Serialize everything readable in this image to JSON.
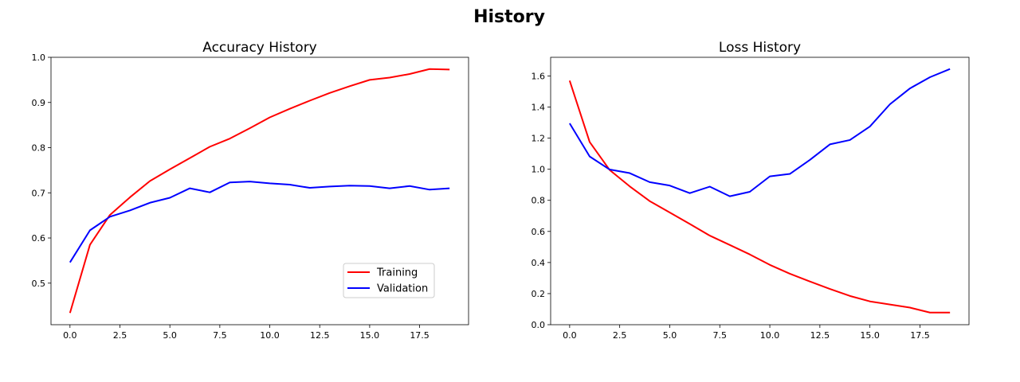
{
  "figure": {
    "title": "History"
  },
  "chart_data": [
    {
      "type": "line",
      "title": "Accuracy History",
      "xlabel": "",
      "ylabel": "",
      "x": [
        0,
        1,
        2,
        3,
        4,
        5,
        6,
        7,
        8,
        9,
        10,
        11,
        12,
        13,
        14,
        15,
        16,
        17,
        18,
        19
      ],
      "xlim": [
        -0.95,
        19.95
      ],
      "ylim": [
        0.408,
        1.0
      ],
      "xticks": [
        0.0,
        2.5,
        5.0,
        7.5,
        10.0,
        12.5,
        15.0,
        17.5
      ],
      "xtick_labels": [
        "0.0",
        "2.5",
        "5.0",
        "7.5",
        "10.0",
        "12.5",
        "15.0",
        "17.5"
      ],
      "yticks": [
        0.5,
        0.6,
        0.7,
        0.8,
        0.9,
        1.0
      ],
      "ytick_labels": [
        "0.5",
        "0.6",
        "0.7",
        "0.8",
        "0.9",
        "1.0"
      ],
      "grid": false,
      "legend": "lower-right",
      "series": [
        {
          "name": "Training",
          "color": "#ff0000",
          "values": [
            0.434,
            0.585,
            0.651,
            0.69,
            0.726,
            0.752,
            0.777,
            0.802,
            0.82,
            0.843,
            0.867,
            0.886,
            0.904,
            0.921,
            0.936,
            0.95,
            0.955,
            0.963,
            0.974,
            0.973
          ]
        },
        {
          "name": "Validation",
          "color": "#0000ff",
          "values": [
            0.546,
            0.617,
            0.647,
            0.661,
            0.678,
            0.689,
            0.71,
            0.701,
            0.723,
            0.725,
            0.721,
            0.718,
            0.711,
            0.714,
            0.716,
            0.715,
            0.71,
            0.715,
            0.707,
            0.71
          ]
        }
      ]
    },
    {
      "type": "line",
      "title": "Loss History",
      "xlabel": "",
      "ylabel": "",
      "x": [
        0,
        1,
        2,
        3,
        4,
        5,
        6,
        7,
        8,
        9,
        10,
        11,
        12,
        13,
        14,
        15,
        16,
        17,
        18,
        19
      ],
      "xlim": [
        -0.95,
        19.95
      ],
      "ylim": [
        0.0,
        1.72
      ],
      "xticks": [
        0.0,
        2.5,
        5.0,
        7.5,
        10.0,
        12.5,
        15.0,
        17.5
      ],
      "xtick_labels": [
        "0.0",
        "2.5",
        "5.0",
        "7.5",
        "10.0",
        "12.5",
        "15.0",
        "17.5"
      ],
      "yticks": [
        0.0,
        0.2,
        0.4,
        0.6,
        0.8,
        1.0,
        1.2,
        1.4,
        1.6
      ],
      "ytick_labels": [
        "0.0",
        "0.2",
        "0.4",
        "0.6",
        "0.8",
        "1.0",
        "1.2",
        "1.4",
        "1.6"
      ],
      "grid": false,
      "series": [
        {
          "name": "Training",
          "color": "#ff0000",
          "values": [
            1.57,
            1.175,
            0.995,
            0.89,
            0.795,
            0.722,
            0.648,
            0.573,
            0.513,
            0.452,
            0.385,
            0.328,
            0.278,
            0.23,
            0.185,
            0.15,
            0.13,
            0.11,
            0.078,
            0.078
          ]
        },
        {
          "name": "Validation",
          "color": "#0000ff",
          "values": [
            1.295,
            1.082,
            0.998,
            0.975,
            0.917,
            0.895,
            0.846,
            0.888,
            0.826,
            0.855,
            0.954,
            0.97,
            1.06,
            1.16,
            1.188,
            1.275,
            1.418,
            1.52,
            1.592,
            1.645
          ]
        }
      ]
    }
  ]
}
